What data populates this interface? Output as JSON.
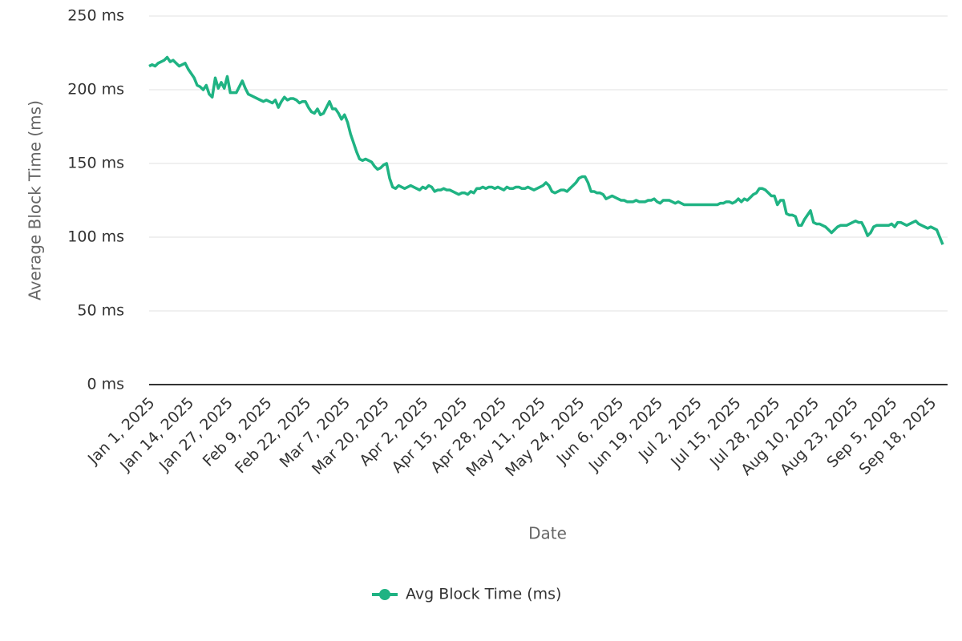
{
  "chart_data": {
    "type": "line",
    "xlabel": "Date",
    "ylabel": "Average Block Time (ms)",
    "categories": [
      "Jan 1, 2025",
      null,
      null,
      null,
      null,
      null,
      null,
      null,
      null,
      null,
      null,
      null,
      null,
      "Jan 14, 2025",
      null,
      null,
      null,
      null,
      null,
      null,
      null,
      null,
      null,
      null,
      null,
      null,
      "Jan 27, 2025",
      null,
      null,
      null,
      null,
      null,
      null,
      null,
      null,
      null,
      null,
      null,
      null,
      "Feb 9, 2025",
      null,
      null,
      null,
      null,
      null,
      null,
      null,
      null,
      null,
      null,
      null,
      null,
      "Feb 22, 2025",
      null,
      null,
      null,
      null,
      null,
      null,
      null,
      null,
      null,
      null,
      null,
      null,
      "Mar 7, 2025",
      null,
      null,
      null,
      null,
      null,
      null,
      null,
      null,
      null,
      null,
      null,
      null,
      "Mar 20, 2025",
      null,
      null,
      null,
      null,
      null,
      null,
      null,
      null,
      null,
      null,
      null,
      null,
      "Apr 2, 2025",
      null,
      null,
      null,
      null,
      null,
      null,
      null,
      null,
      null,
      null,
      null,
      null,
      "Apr 15, 2025",
      null,
      null,
      null,
      null,
      null,
      null,
      null,
      null,
      null,
      null,
      null,
      null,
      "Apr 28, 2025",
      null,
      null,
      null,
      null,
      null,
      null,
      null,
      null,
      null,
      null,
      null,
      null,
      "May 11, 2025",
      null,
      null,
      null,
      null,
      null,
      null,
      null,
      null,
      null,
      null,
      null,
      null,
      "May 24, 2025",
      null,
      null,
      null,
      null,
      null,
      null,
      null,
      null,
      null,
      null,
      null,
      null,
      "Jun 6, 2025",
      null,
      null,
      null,
      null,
      null,
      null,
      null,
      null,
      null,
      null,
      null,
      null,
      "Jun 19, 2025",
      null,
      null,
      null,
      null,
      null,
      null,
      null,
      null,
      null,
      null,
      null,
      null,
      "Jul 2, 2025",
      null,
      null,
      null,
      null,
      null,
      null,
      null,
      null,
      null,
      null,
      null,
      null,
      "Jul 15, 2025",
      null,
      null,
      null,
      null,
      null,
      null,
      null,
      null,
      null,
      null,
      null,
      null,
      "Jul 28, 2025",
      null,
      null,
      null,
      null,
      null,
      null,
      null,
      null,
      null,
      null,
      null,
      null,
      "Aug 10, 2025",
      null,
      null,
      null,
      null,
      null,
      null,
      null,
      null,
      null,
      null,
      null,
      null,
      "Aug 23, 2025",
      null,
      null,
      null,
      null,
      null,
      null,
      null,
      null,
      null,
      null,
      null,
      null,
      "Sep 5, 2025",
      null,
      null,
      null,
      null,
      null,
      null,
      null,
      null,
      null,
      null,
      null,
      null,
      "Sep 18, 2025",
      null,
      null,
      null,
      null
    ],
    "series": [
      {
        "name": "Avg Block Time (ms)",
        "color": "#1fb383",
        "values": [
          216,
          217,
          216,
          218,
          219,
          220,
          222,
          219,
          220,
          218,
          216,
          217,
          218,
          214,
          211,
          208,
          203,
          202,
          200,
          203,
          197,
          195,
          208,
          201,
          205,
          201,
          209,
          198,
          198,
          198,
          202,
          206,
          201,
          197,
          196,
          195,
          194,
          193,
          192,
          193,
          192,
          191,
          193,
          188,
          192,
          195,
          193,
          194,
          194,
          193,
          191,
          192,
          192,
          188,
          185,
          184,
          187,
          183,
          184,
          188,
          192,
          187,
          187,
          184,
          180,
          183,
          178,
          170,
          164,
          158,
          153,
          152,
          153,
          152,
          151,
          148,
          146,
          147,
          149,
          150,
          140,
          134,
          133,
          135,
          134,
          133,
          134,
          135,
          134,
          133,
          132,
          134,
          133,
          135,
          134,
          131,
          132,
          132,
          133,
          132,
          132,
          131,
          130,
          129,
          130,
          130,
          129,
          131,
          130,
          133,
          133,
          134,
          133,
          134,
          134,
          133,
          134,
          133,
          132,
          134,
          133,
          133,
          134,
          134,
          133,
          133,
          134,
          133,
          132,
          133,
          134,
          135,
          137,
          135,
          131,
          130,
          131,
          132,
          132,
          131,
          133,
          135,
          137,
          140,
          141,
          141,
          137,
          131,
          131,
          130,
          130,
          129,
          126,
          127,
          128,
          127,
          126,
          125,
          125,
          124,
          124,
          124,
          125,
          124,
          124,
          124,
          125,
          125,
          126,
          124,
          123,
          125,
          125,
          125,
          124,
          123,
          124,
          123,
          122,
          122,
          122,
          122,
          122,
          122,
          122,
          122,
          122,
          122,
          122,
          122,
          123,
          123,
          124,
          124,
          123,
          124,
          126,
          124,
          126,
          125,
          127,
          129,
          130,
          133,
          133,
          132,
          130,
          128,
          128,
          122,
          125,
          125,
          116,
          115,
          115,
          114,
          108,
          108,
          112,
          115,
          118,
          110,
          109,
          109,
          108,
          107,
          105,
          103,
          105,
          107,
          108,
          108,
          108,
          109,
          110,
          111,
          110,
          110,
          106,
          101,
          103,
          107,
          108,
          108,
          108,
          108,
          108,
          109,
          107,
          110,
          110,
          109,
          108,
          109,
          110,
          111,
          109,
          108,
          107,
          106,
          107,
          106,
          105,
          100,
          95
        ]
      }
    ],
    "ylim": [
      0,
      250
    ],
    "yticks": [
      {
        "value": 0,
        "label": "0 ms"
      },
      {
        "value": 50,
        "label": "50 ms"
      },
      {
        "value": 100,
        "label": "100 ms"
      },
      {
        "value": 150,
        "label": "150 ms"
      },
      {
        "value": 200,
        "label": "200 ms"
      },
      {
        "value": 250,
        "label": "250 ms"
      }
    ],
    "grid": true,
    "legend": "bottom"
  }
}
